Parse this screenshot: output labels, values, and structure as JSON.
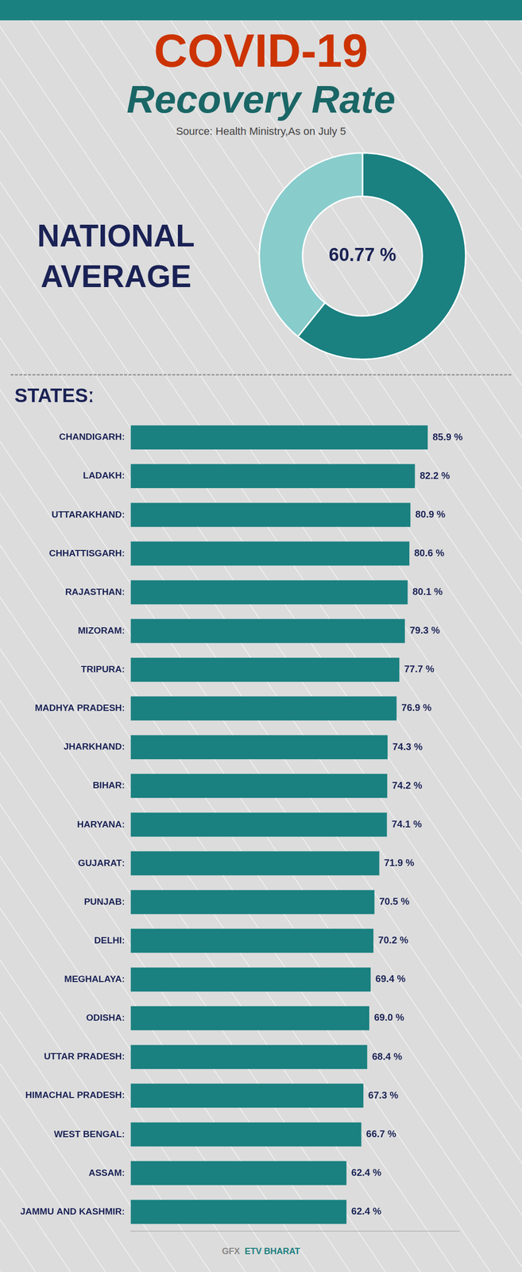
{
  "chart_data": [
    {
      "type": "doughnut",
      "title": "COVID-19",
      "subtitle": "Recovery Rate",
      "annotations": [
        "Source: Health Ministry,As on July 5",
        "NATIONAL",
        "AVERAGE",
        "60.77 %"
      ],
      "categories": [
        null,
        null
      ],
      "values": [
        60.77,
        39.23
      ],
      "colors": [
        "#1a8080",
        "#88cccc"
      ]
    },
    {
      "type": "bar",
      "orientation": "horizontal",
      "title": "STATESː",
      "categories": [
        "CHANDIGARHː",
        "LADAKHː",
        "UTTARAKHANDː",
        "CHHATTISGARHː",
        "RAJASTHANː",
        "MIZORAMː",
        "TRIPURAː",
        "MADHYA PRADESHː",
        "JHARKHANDː",
        "BIHARː",
        "HARYANAː",
        "GUJARATː",
        "PUNJABː",
        "DELHIː",
        "MEGHALAYAː",
        "ODISHAː",
        "UTTAR PRADESHː",
        "HIMACHAL PRADESHː",
        "WEST BENGALː",
        "ASSAMː",
        "JAMMU AND KASHMIRː"
      ],
      "values": [
        85.9,
        82.2,
        80.9,
        80.6,
        80.1,
        79.3,
        77.7,
        76.9,
        74.3,
        74.2,
        74.1,
        71.9,
        70.5,
        70.2,
        69.4,
        69.0,
        68.4,
        67.3,
        66.7,
        62.4,
        62.4
      ],
      "value_labels": [
        "85.9 %",
        "82.2 %",
        "80.9 %",
        "80.6 %",
        "80.1 %",
        "79.3 %",
        "77.7 %",
        "76.9 %",
        "74.3 %",
        "74.2 %",
        "74.1 %",
        "71.9 %",
        "70.5 %",
        "70.2 %",
        "69.4 %",
        "69.0 %",
        "68.4 %",
        "67.3 %",
        "66.7 %",
        "62.4 %",
        "62.4 %"
      ],
      "data_labels": true,
      "color": "#1a8080",
      "xlim": [
        0,
        95
      ],
      "tick_labels": "y",
      "grid": false,
      "annotations": [
        "GFX",
        "ETV BHARAT"
      ]
    }
  ]
}
